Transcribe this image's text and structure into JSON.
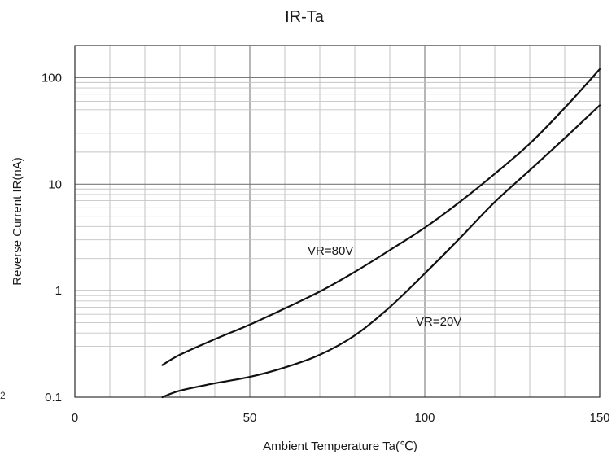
{
  "chart_data": {
    "type": "line",
    "title": "IR-Ta",
    "xlabel": "Ambient Temperature   Ta(℃)",
    "ylabel": "Reverse Current   IR(nA)",
    "xlim": [
      0,
      150
    ],
    "ylim": [
      0.1,
      200
    ],
    "yscale": "log",
    "grid": true,
    "x_tick_labels": [
      "0",
      "50",
      "100",
      "150"
    ],
    "y_tick_labels": [
      "0.1",
      "1",
      "10",
      "100"
    ],
    "stray_text": "2",
    "series": [
      {
        "name": "VR=80V",
        "x": [
          25,
          30,
          40,
          50,
          60,
          70,
          80,
          90,
          100,
          110,
          120,
          130,
          140,
          150
        ],
        "y": [
          0.2,
          0.25,
          0.35,
          0.48,
          0.68,
          0.98,
          1.5,
          2.4,
          3.9,
          6.8,
          12.5,
          24,
          52,
          120
        ]
      },
      {
        "name": "VR=20V",
        "x": [
          25,
          30,
          40,
          50,
          60,
          70,
          80,
          90,
          100,
          110,
          120,
          130,
          140,
          150
        ],
        "y": [
          0.1,
          0.115,
          0.135,
          0.155,
          0.19,
          0.25,
          0.38,
          0.7,
          1.45,
          3.1,
          6.8,
          13.5,
          27,
          55
        ]
      }
    ],
    "annotations": [
      {
        "text": "VR=80V",
        "series": "VR=80V"
      },
      {
        "text": "VR=20V",
        "series": "VR=20V"
      }
    ]
  }
}
